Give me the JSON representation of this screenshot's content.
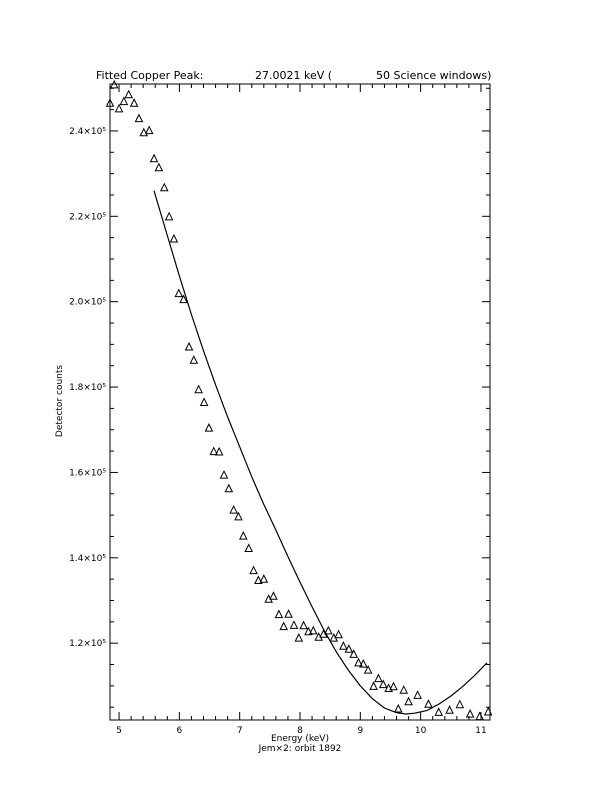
{
  "chart_data": {
    "type": "scatter",
    "title_parts": [
      "Fitted Copper Peak:",
      "27.0021 keV (",
      "50 Science windows)"
    ],
    "xlabel": "Energy (keV)",
    "ylabel": "Detector counts",
    "footer": "Jem×2: orbit 1892",
    "xlim": [
      4.85,
      11.15
    ],
    "ylim": [
      102000,
      251000
    ],
    "xticks": [
      5,
      6,
      7,
      8,
      9,
      10,
      11
    ],
    "xtick_labels": [
      "5",
      "6",
      "7",
      "8",
      "9",
      "10",
      "11"
    ],
    "yticks": [
      120000,
      140000,
      160000,
      180000,
      200000,
      220000,
      240000
    ],
    "ytick_labels": [
      "1.2×10⁵",
      "1.4×10⁵",
      "1.6×10⁵",
      "1.8×10⁵",
      "2.0×10⁵",
      "2.2×10⁵",
      "2.4×10⁵"
    ],
    "grid": false,
    "series": [
      {
        "marker": "triangle",
        "x": [
          4.85,
          4.92,
          5.0,
          5.08,
          5.16,
          5.25,
          5.33,
          5.41,
          5.5,
          5.58,
          5.66,
          5.75,
          5.83,
          5.91,
          5.99,
          6.07,
          6.16,
          6.24,
          6.32,
          6.41,
          6.49,
          6.57,
          6.66,
          6.74,
          6.82,
          6.9,
          6.98,
          7.06,
          7.15,
          7.23,
          7.31,
          7.4,
          7.48,
          7.56,
          7.65,
          7.73,
          7.81,
          7.9,
          7.98,
          8.06,
          8.14,
          8.22,
          8.31,
          8.39,
          8.47,
          8.56,
          8.64,
          8.72,
          8.81,
          8.89,
          8.97,
          9.05,
          9.13,
          9.22,
          9.3,
          9.38,
          9.47,
          9.55,
          9.63,
          9.72,
          9.8,
          9.95,
          10.13,
          10.3,
          10.48,
          10.65,
          10.82,
          10.98,
          11.12
        ],
        "y": [
          246600,
          250900,
          245300,
          247000,
          248600,
          246600,
          243000,
          239700,
          240200,
          233600,
          231500,
          226800,
          220000,
          214800,
          202000,
          200600,
          189500,
          186400,
          179500,
          176500,
          170500,
          165000,
          164900,
          159500,
          156300,
          151300,
          149700,
          145200,
          142300,
          137100,
          134800,
          135100,
          130400,
          131100,
          126800,
          124000,
          126900,
          124300,
          121300,
          124200,
          122800,
          123000,
          121500,
          122200,
          123000,
          121300,
          122100,
          119400,
          118700,
          117500,
          115500,
          115200,
          113800,
          110000,
          111800,
          110400,
          109500,
          109900,
          104700,
          109100,
          106400,
          107900,
          105800,
          103900,
          104400,
          105700,
          103500,
          102900,
          104000
        ]
      },
      {
        "type": "line",
        "x": [
          5.58,
          5.8,
          6.0,
          6.2,
          6.4,
          6.6,
          6.8,
          7.0,
          7.2,
          7.4,
          7.6,
          7.8,
          8.0,
          8.2,
          8.4,
          8.6,
          8.8,
          9.0,
          9.2,
          9.4,
          9.6,
          9.75,
          9.9,
          10.1,
          10.3,
          10.5,
          10.7,
          10.9,
          11.1
        ],
        "y": [
          226000,
          215500,
          206000,
          197000,
          188500,
          180500,
          173000,
          166000,
          159000,
          152500,
          146500,
          140300,
          134300,
          128500,
          123000,
          118000,
          113700,
          110000,
          107000,
          104800,
          103700,
          103400,
          103600,
          104200,
          105700,
          107600,
          109900,
          112500,
          115400
        ]
      }
    ]
  }
}
